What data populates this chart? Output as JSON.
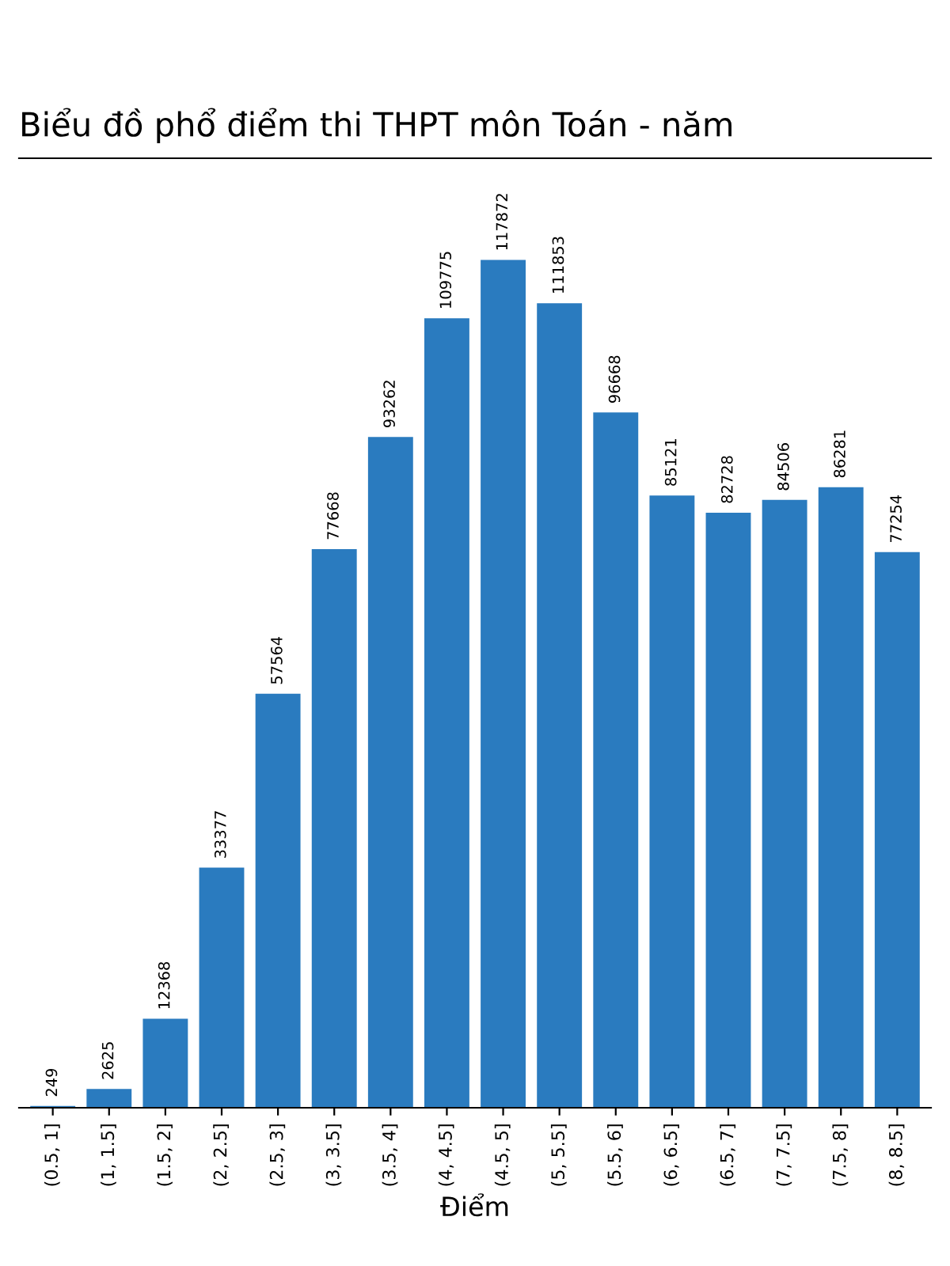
{
  "chart_data": {
    "type": "bar",
    "title": "Biểu đồ phổ điểm thi THPT môn Toán - năm",
    "xlabel": "Điểm",
    "categories": [
      "(0.5, 1]",
      "(1, 1.5]",
      "(1.5, 2]",
      "(2, 2.5]",
      "(2.5, 3]",
      "(3, 3.5]",
      "(3.5, 4]",
      "(4, 4.5]",
      "(4.5, 5]",
      "(5, 5.5]",
      "(5.5, 6]",
      "(6, 6.5]",
      "(6.5, 7]",
      "(7, 7.5]",
      "(7.5, 8]",
      "(8, 8.5]"
    ],
    "values": [
      249,
      2625,
      12368,
      33377,
      57564,
      77668,
      93262,
      109775,
      117872,
      111853,
      96668,
      85121,
      82728,
      84506,
      86281,
      77254
    ],
    "color": "#2a7bbf",
    "data_labels": true,
    "tick_labels": "x",
    "grid": false,
    "legend": false
  }
}
